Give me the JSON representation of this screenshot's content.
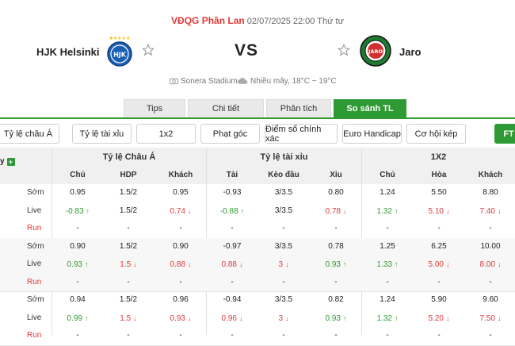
{
  "header": {
    "league": "VĐQG Phần Lan",
    "datetime": "02/07/2025 22:00 Thứ tư",
    "home_team": "HJK Helsinki",
    "away_team": "Jaro",
    "vs": "VS",
    "venue": "Sonera Stadium",
    "weather": "Nhiều mây, 18°C ~ 19°C",
    "home_logo_text": "HJK",
    "away_logo_text": "JARO"
  },
  "tabs": [
    {
      "label": "Tips",
      "active": false
    },
    {
      "label": "Chi tiết",
      "active": false
    },
    {
      "label": "Phân tích",
      "active": false
    },
    {
      "label": "So sánh TL",
      "active": true
    }
  ],
  "filters": [
    "Tỷ lệ châu Á",
    "Tỷ lệ tài xỉu",
    "1x2",
    "Phạt góc",
    "Điểm số chính xác",
    "Euro Handicap",
    "Cơ hội kép",
    "FT"
  ],
  "table": {
    "bookmaker_label": "y",
    "groups": [
      "Tỷ lệ Châu Á",
      "Tỷ lệ tài xỉu",
      "1X2"
    ],
    "columns": [
      "Chủ",
      "HDP",
      "Khách",
      "Tài",
      "Kèo đầu",
      "Xỉu",
      "Chủ",
      "Hòa",
      "Khách"
    ],
    "colors": {
      "up": "#2e9a33",
      "down": "#e03a3a",
      "accent": "#2e9a33"
    },
    "rows": [
      {
        "label": "Sớm",
        "type": "early",
        "cells": [
          [
            "0.95",
            ""
          ],
          [
            "1.5/2",
            ""
          ],
          [
            "0.95",
            ""
          ],
          [
            "-0.93",
            ""
          ],
          [
            "3/3.5",
            ""
          ],
          [
            "0.80",
            ""
          ],
          [
            "1.24",
            ""
          ],
          [
            "5.50",
            ""
          ],
          [
            "8.80",
            ""
          ]
        ]
      },
      {
        "label": "Live",
        "type": "live",
        "cells": [
          [
            "-0.83",
            "up"
          ],
          [
            "1.5/2",
            ""
          ],
          [
            "0.74",
            "down"
          ],
          [
            "-0.88",
            "up"
          ],
          [
            "3/3.5",
            ""
          ],
          [
            "0.78",
            "down"
          ],
          [
            "1.32",
            "up"
          ],
          [
            "5.10",
            "down"
          ],
          [
            "7.40",
            "down"
          ]
        ]
      },
      {
        "label": "Run",
        "type": "run",
        "cells": [
          [
            "-",
            ""
          ],
          [
            "-",
            ""
          ],
          [
            "-",
            ""
          ],
          [
            "-",
            ""
          ],
          [
            "-",
            ""
          ],
          [
            "-",
            ""
          ],
          [
            "-",
            ""
          ],
          [
            "-",
            ""
          ],
          [
            "-",
            ""
          ]
        ]
      },
      {
        "label": "Sớm",
        "type": "early",
        "cells": [
          [
            "0.90",
            ""
          ],
          [
            "1.5/2",
            ""
          ],
          [
            "0.90",
            ""
          ],
          [
            "-0.97",
            ""
          ],
          [
            "3/3.5",
            ""
          ],
          [
            "0.78",
            ""
          ],
          [
            "1.25",
            ""
          ],
          [
            "6.25",
            ""
          ],
          [
            "10.00",
            ""
          ]
        ]
      },
      {
        "label": "Live",
        "type": "live",
        "cells": [
          [
            "0.93",
            "up"
          ],
          [
            "1.5",
            "down"
          ],
          [
            "0.88",
            "down"
          ],
          [
            "0.88",
            "down"
          ],
          [
            "3",
            "down"
          ],
          [
            "0.93",
            "up"
          ],
          [
            "1.33",
            "up"
          ],
          [
            "5.00",
            "down"
          ],
          [
            "8.00",
            "down"
          ]
        ]
      },
      {
        "label": "Run",
        "type": "run",
        "cells": [
          [
            "-",
            ""
          ],
          [
            "-",
            ""
          ],
          [
            "-",
            ""
          ],
          [
            "-",
            ""
          ],
          [
            "-",
            ""
          ],
          [
            "-",
            ""
          ],
          [
            "-",
            ""
          ],
          [
            "-",
            ""
          ],
          [
            "-",
            ""
          ]
        ]
      },
      {
        "label": "Sớm",
        "type": "early",
        "cells": [
          [
            "0.94",
            ""
          ],
          [
            "1.5/2",
            ""
          ],
          [
            "0.96",
            ""
          ],
          [
            "-0.94",
            ""
          ],
          [
            "3/3.5",
            ""
          ],
          [
            "0.82",
            ""
          ],
          [
            "1.24",
            ""
          ],
          [
            "5.90",
            ""
          ],
          [
            "9.60",
            ""
          ]
        ]
      },
      {
        "label": "Live",
        "type": "live",
        "cells": [
          [
            "0.99",
            "up"
          ],
          [
            "1.5",
            "down"
          ],
          [
            "0.93",
            "down"
          ],
          [
            "0.96",
            "down"
          ],
          [
            "3",
            "down"
          ],
          [
            "0.93",
            "up"
          ],
          [
            "1.32",
            "up"
          ],
          [
            "5.20",
            "down"
          ],
          [
            "7.50",
            "down"
          ]
        ]
      },
      {
        "label": "Run",
        "type": "run",
        "cells": [
          [
            "-",
            ""
          ],
          [
            "-",
            ""
          ],
          [
            "-",
            ""
          ],
          [
            "-",
            ""
          ],
          [
            "-",
            ""
          ],
          [
            "-",
            ""
          ],
          [
            "-",
            ""
          ],
          [
            "-",
            ""
          ],
          [
            "-",
            ""
          ]
        ]
      }
    ]
  }
}
